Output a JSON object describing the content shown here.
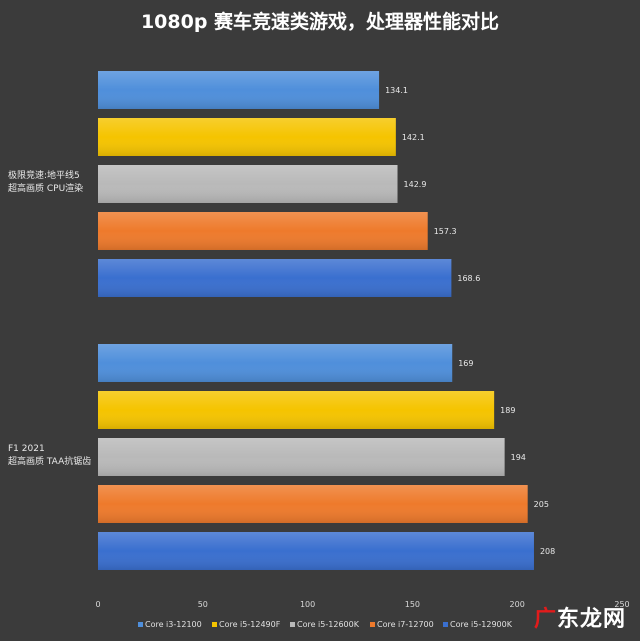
{
  "chart_data": {
    "type": "bar",
    "orientation": "horizontal",
    "title": "1080p 赛车竞速类游戏，处理器性能对比",
    "xlim": [
      0,
      250
    ],
    "xticks": [
      0,
      50,
      100,
      150,
      200,
      250
    ],
    "grid": false,
    "legend_position": "bottom",
    "groups": [
      {
        "label": [
          "极限竞速:地平线5",
          "超高画质 CPU渲染"
        ]
      },
      {
        "label": [
          "F1 2021",
          "超高画质 TAA抗锯齿"
        ]
      }
    ],
    "series": [
      {
        "name": "Core i3-12100",
        "color": "#4f8fdb",
        "values": [
          134.1,
          169
        ],
        "labels": [
          "134.1",
          "169"
        ]
      },
      {
        "name": "Core i5-12490F",
        "color": "#f5c400",
        "values": [
          142.1,
          189
        ],
        "labels": [
          "142.1",
          "189"
        ]
      },
      {
        "name": "Core i5-12600K",
        "color": "#b9b9b9",
        "values": [
          142.9,
          194
        ],
        "labels": [
          "142.9",
          "194"
        ]
      },
      {
        "name": "Core i7-12700",
        "color": "#ee7a2c",
        "values": [
          157.3,
          205
        ],
        "labels": [
          "157.3",
          "205"
        ]
      },
      {
        "name": "Core i5-12900K",
        "color": "#3a6fcf",
        "values": [
          168.6,
          208
        ],
        "labels": [
          "168.6",
          "208"
        ]
      }
    ]
  },
  "watermark": {
    "mark": "广",
    "text": "东龙网"
  }
}
